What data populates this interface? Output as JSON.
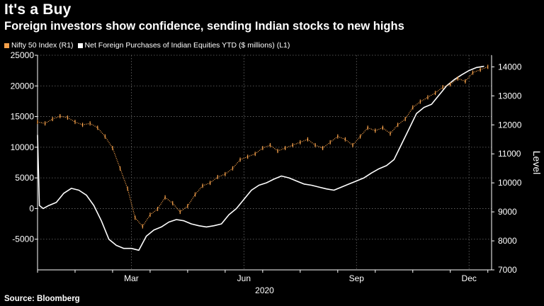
{
  "title": "It's a Buy",
  "subtitle": "Foreign investors show confidence, sending Indian stocks to new highs",
  "legend": [
    {
      "label": "Nifty 50 Index (R1)",
      "color": "#f5a04a"
    },
    {
      "label": "Net Foreign Purchases of Indian Equities YTD ($ millions) (L1)",
      "color": "#ffffff"
    }
  ],
  "source": "Source: Bloomberg",
  "chart_data": {
    "type": "line",
    "title": "It's a Buy",
    "subtitle": "Foreign investors show confidence, sending Indian stocks to new highs",
    "xlabel": "2020",
    "x_tick_labels": [
      "Mar",
      "Jun",
      "Sep",
      "Dec"
    ],
    "x_tick_months": [
      2.5,
      5.5,
      8.5,
      11.5
    ],
    "x_range_months": [
      0,
      12.1
    ],
    "year_label": "2020",
    "left_axis": {
      "ticks": [
        -5000,
        0,
        5000,
        10000,
        15000,
        20000,
        25000
      ],
      "range": [
        -10000,
        25000
      ]
    },
    "right_axis": {
      "label": "Level",
      "ticks": [
        7000,
        8000,
        9000,
        10000,
        11000,
        12000,
        13000,
        14000
      ],
      "range": [
        7000,
        14400
      ]
    },
    "grid": true,
    "legend_position": "top-left",
    "series": [
      {
        "name": "Net Foreign Purchases of Indian Equities YTD ($ millions)",
        "axis": "left",
        "color": "#ffffff",
        "x": [
          0.0,
          0.05,
          0.15,
          0.3,
          0.5,
          0.7,
          0.9,
          1.1,
          1.3,
          1.5,
          1.7,
          1.9,
          2.1,
          2.3,
          2.5,
          2.7,
          2.9,
          3.1,
          3.3,
          3.5,
          3.7,
          3.9,
          4.1,
          4.3,
          4.5,
          4.7,
          4.9,
          5.1,
          5.3,
          5.5,
          5.7,
          5.9,
          6.1,
          6.3,
          6.5,
          6.7,
          6.9,
          7.1,
          7.3,
          7.5,
          7.7,
          7.9,
          8.1,
          8.3,
          8.5,
          8.7,
          8.9,
          9.1,
          9.3,
          9.5,
          9.7,
          9.9,
          10.1,
          10.3,
          10.5,
          10.7,
          10.9,
          11.1,
          11.3,
          11.5,
          11.7,
          11.9
        ],
        "values": [
          12000,
          500,
          0,
          500,
          1000,
          2500,
          3300,
          3000,
          2200,
          500,
          -2000,
          -5000,
          -6000,
          -6500,
          -6500,
          -6800,
          -4500,
          -3500,
          -3000,
          -2200,
          -1800,
          -2000,
          -2500,
          -2800,
          -3000,
          -2800,
          -2500,
          -1000,
          0,
          1500,
          3000,
          3800,
          4200,
          4800,
          5300,
          5000,
          4500,
          4000,
          3800,
          3500,
          3200,
          3000,
          3500,
          4000,
          4500,
          5000,
          5800,
          6500,
          7000,
          8000,
          10500,
          13000,
          15500,
          16500,
          17000,
          18500,
          20000,
          21000,
          21800,
          22500,
          23000,
          23200
        ]
      },
      {
        "name": "Nifty 50 Index",
        "axis": "right",
        "color": "#f5a04a",
        "x": [
          0.0,
          0.2,
          0.4,
          0.6,
          0.8,
          1.0,
          1.2,
          1.4,
          1.6,
          1.8,
          2.0,
          2.2,
          2.4,
          2.6,
          2.8,
          3.0,
          3.2,
          3.4,
          3.6,
          3.8,
          4.0,
          4.2,
          4.4,
          4.6,
          4.8,
          5.0,
          5.2,
          5.4,
          5.6,
          5.8,
          6.0,
          6.2,
          6.4,
          6.6,
          6.8,
          7.0,
          7.2,
          7.4,
          7.6,
          7.8,
          8.0,
          8.2,
          8.4,
          8.6,
          8.8,
          9.0,
          9.2,
          9.4,
          9.6,
          9.8,
          10.0,
          10.2,
          10.4,
          10.6,
          10.8,
          11.0,
          11.2,
          11.4,
          11.6,
          11.8,
          12.0
        ],
        "values": [
          12100,
          12050,
          12200,
          12300,
          12250,
          12100,
          12000,
          12050,
          11900,
          11600,
          11200,
          10500,
          9800,
          8800,
          8500,
          8900,
          9100,
          9500,
          9300,
          9000,
          9200,
          9600,
          9900,
          10000,
          10200,
          10300,
          10500,
          10800,
          10900,
          11000,
          11200,
          11300,
          11100,
          11200,
          11300,
          11400,
          11500,
          11300,
          11200,
          11400,
          11600,
          11500,
          11300,
          11600,
          11900,
          11800,
          11900,
          11700,
          12000,
          12200,
          12600,
          12800,
          12950,
          13100,
          13300,
          13400,
          13600,
          13500,
          13800,
          13900,
          14000
        ]
      }
    ]
  }
}
